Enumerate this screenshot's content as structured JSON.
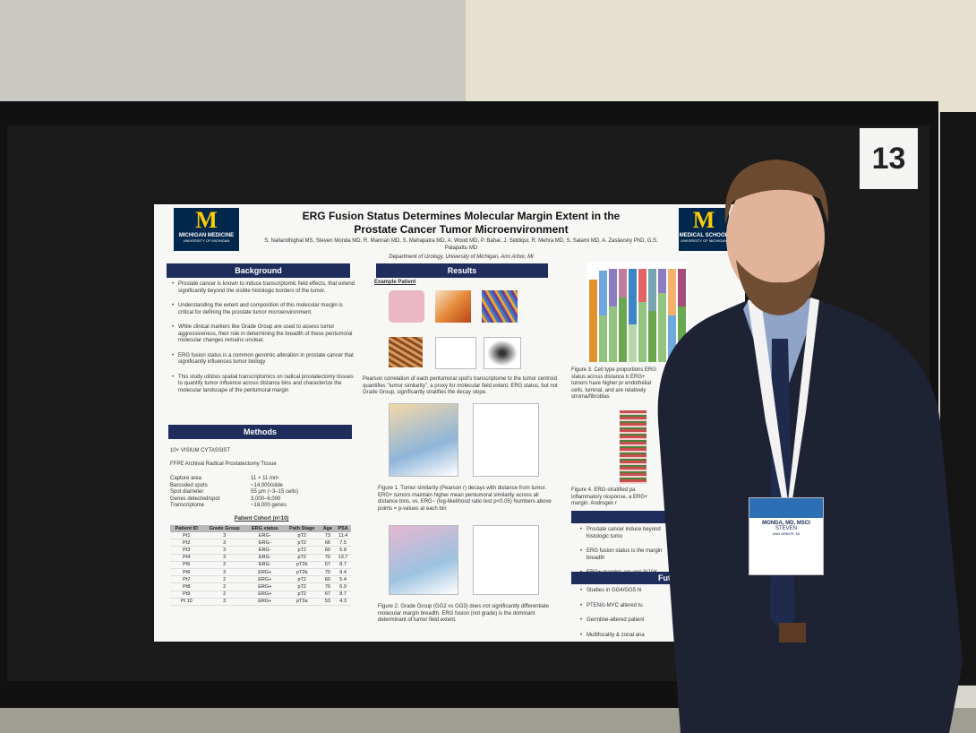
{
  "board_number": "13",
  "poster": {
    "logo_left": {
      "name": "MICHIGAN MEDICINE",
      "sub": "UNIVERSITY OF MICHIGAN"
    },
    "logo_right": {
      "name": "MEDICAL SCHOOL",
      "sub": "UNIVERSITY OF MICHIGAN"
    },
    "title": [
      "ERG Fusion Status Determines Molecular Margin Extent in the",
      "Prostate Cancer Tumor Microenvironment"
    ],
    "authors": "S. Nallandhighal MS, Steven Monda MD, R. Mannan MD, S. Mahapatra MD, A. Wood MD, P. Bahar, J. Siddiqui, R. Mehra MD, S. Salami MD, A. Zaslavsky PhD, G.S. Palapattu MD",
    "affiliation": "Department of Urology, University of Michigan, Ann Arbor, MI",
    "background": {
      "heading": "Background",
      "bullets": [
        "Prostate cancer is known to induce transcriptomic field effects, that extend significantly beyond the visible histologic borders of the tumor.",
        "Understanding the extent and composition of this molecular margin is critical for defining the prostate tumor microenvironment.",
        "While clinical markers like Grade Group are used to assess tumor aggressiveness, their role in determining the breadth of these pentumoral molecular changes remains unclear.",
        "ERG fusion status is a common genomic alteration in prostate cancer that significantly influences tumor biology",
        "This study utilizes spatial transcriptomics on radical prostatectomy tissues to quantify tumor influence across distance bins and characterize the molecular landscape of the pentumoral margin"
      ]
    },
    "methods": {
      "heading": "Methods",
      "lines": [
        "10× VISIUM CYTASSIST",
        "FFPE Archival Radical Prostatectomy Tissue"
      ],
      "specs": [
        [
          "Capture area",
          "11 × 11 mm"
        ],
        [
          "Barcoded spots",
          "~14,000/slide"
        ],
        [
          "Spot diameter",
          "55 µm (~3–15 cells)"
        ],
        [
          "Genes detected/spot",
          "3,000–6,000"
        ],
        [
          "Transcriptome",
          "~18,000 genes"
        ]
      ],
      "cohort_title": "Patient Cohort (n=10)",
      "table": {
        "columns": [
          "Patient ID",
          "Grade Group",
          "ERG status",
          "Path Stage",
          "Age",
          "PSA"
        ],
        "rows": [
          [
            "Pt1",
            "3",
            "ERG-",
            "pT2",
            "73",
            "11.4"
          ],
          [
            "Pt2",
            "3",
            "ERG-",
            "pT2",
            "66",
            "7.5"
          ],
          [
            "Pt3",
            "3",
            "ERG-",
            "pT2",
            "60",
            "5.8"
          ],
          [
            "Pt4",
            "3",
            "ERG-",
            "pT2",
            "70",
            "13.7"
          ],
          [
            "Pt5",
            "2",
            "ERG-",
            "pT2b",
            "67",
            "8.7"
          ],
          [
            "Pt6",
            "3",
            "ERG+",
            "pT2b",
            "70",
            "9.4"
          ],
          [
            "Pt7",
            "2",
            "ERG+",
            "pT2",
            "60",
            "5.4"
          ],
          [
            "Pt8",
            "2",
            "ERG+",
            "pT2",
            "70",
            "6.9"
          ],
          [
            "Pt9",
            "2",
            "ERG+",
            "pT2",
            "67",
            "8.7"
          ],
          [
            "Pt 10",
            "3",
            "ERG+",
            "pT3a",
            "53",
            "4.3"
          ]
        ]
      }
    },
    "results": {
      "heading": "Results",
      "example_label": "Example Patient",
      "text": "Pearson correlation of each pentumoral spot's transcriptome to the tumor centroid quantifies \"tumor similarity\", a proxy for molecular field extent. ERG status, but not Grade Group, significantly stratifies the decay slope.",
      "figure1": "Figure 1. Tumor similarity (Pearson r) decays with distance from tumor. ERG+ tumors maintain higher mean pentumoral similarity across all distance bins, vs. ERG− (log-likelihood ratio test p<0.05) Numbers above points = p-values at each bin",
      "figure2": "Figure 2. Grade Group (GG2 vs GG3) does not significantly differentiate molecular margin breadth. ERG fusion (not grade) is the dominant determinant of tumor field extent."
    },
    "figure3": "Figure 3. Cell type proportions ERG status across distance b ERG+ tumors have higher pr endothelial cells, luminal, and are relatively stroma/fibroblas",
    "figure4": "Figure 4. ERG-stratified pa inflammatory response, a ERG+ margin. Androgen r",
    "conclusions": {
      "heading": "Co",
      "bullets": [
        "Prostate cancer induce beyond histologic tumo",
        "ERG fusion status is the margin breadth",
        "ERG+ margins are enri β/JAK- STAT3 signali"
      ]
    },
    "future": {
      "heading": "Futur",
      "bullets": [
        "Studies in GG4/GG5 hi",
        "PTEN/c-MYC altered tu",
        "Germline-altered patient",
        "Multifocality & zonal ana"
      ]
    }
  },
  "badge": {
    "name": "MONDA, MD, MSCI",
    "first": "STEVEN",
    "city": "ANN ARBOR, MI"
  }
}
